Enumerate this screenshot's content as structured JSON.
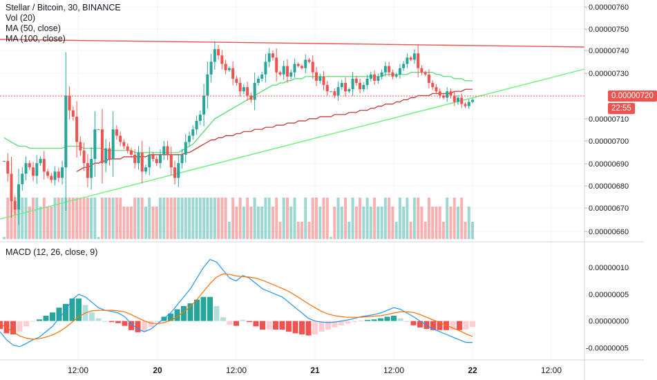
{
  "header": {
    "symbol_line": "Stellar / Bitcoin, 30, BINANCE",
    "indicators": [
      "Vol (20)",
      "MA (50, close)",
      "MA (100, close)"
    ]
  },
  "macd_pane": {
    "legend": "MACD (12, 26, close, 9)"
  },
  "price_axis": {
    "ticks": [
      "0.00000760",
      "0.00000750",
      "0.00000740",
      "0.00000730",
      "0.00000710",
      "0.00000700",
      "0.00000690",
      "0.00000680",
      "0.00000670",
      "0.00000660"
    ],
    "last_price": "0.00000720",
    "countdown": "22:55"
  },
  "macd_axis": {
    "ticks": [
      "0.00000010",
      "0.00000005",
      "0.00000000",
      "-0.00000005"
    ]
  },
  "time_axis": {
    "ticks": [
      "12:00",
      "20",
      "12:00",
      "21",
      "12:00",
      "22",
      "12:00"
    ]
  },
  "colors": {
    "up": "#26a69a",
    "down": "#ef5350",
    "ma50": "#4cd964",
    "ma100": "#c62828",
    "trend_resistance": "#ef5350",
    "trend_support": "#69f07a",
    "macd_line": "#2196f3",
    "signal_line": "#ff6d00",
    "grid": "#f0f3fa",
    "axis_text": "#131722"
  },
  "chart_data": [
    {
      "type": "candlestick",
      "title": "Stellar / Bitcoin, 30, BINANCE",
      "ylim": [
        6.56e-06,
        7.64e-06
      ],
      "x_ticks": [
        "12:00",
        "20",
        "12:00",
        "21",
        "12:00",
        "22",
        "12:00"
      ],
      "close": [
        6.91e-06,
        6.85e-06,
        6.72e-06,
        6.68e-06,
        6.8e-06,
        6.85e-06,
        6.9e-06,
        6.88e-06,
        6.84e-06,
        6.9e-06,
        6.92e-06,
        6.86e-06,
        6.84e-06,
        6.82e-06,
        6.86e-06,
        6.83e-06,
        6.88e-06,
        7.22e-06,
        7.15e-06,
        7.12e-06,
        7e-06,
        6.96e-06,
        6.9e-06,
        6.83e-06,
        6.92e-06,
        7.06e-06,
        7.06e-06,
        6.9e-06,
        6.97e-06,
        6.92e-06,
        7.06e-06,
        7.03e-06,
        7e-06,
        6.98e-06,
        6.96e-06,
        6.94e-06,
        6.9e-06,
        6.95e-06,
        6.86e-06,
        6.88e-06,
        6.94e-06,
        6.92e-06,
        6.9e-06,
        6.94e-06,
        6.98e-06,
        6.94e-06,
        6.88e-06,
        6.83e-06,
        6.9e-06,
        6.94e-06,
        7e-06,
        7.03e-06,
        7.06e-06,
        7.1e-06,
        7.13e-06,
        7.22e-06,
        7.32e-06,
        7.38e-06,
        7.44e-06,
        7.41e-06,
        7.37e-06,
        7.34e-06,
        7.35e-06,
        7.3e-06,
        7.28e-06,
        7.24e-06,
        7.26e-06,
        7.22e-06,
        7.2e-06,
        7.28e-06,
        7.3e-06,
        7.32e-06,
        7.38e-06,
        7.42e-06,
        7.4e-06,
        7.33e-06,
        7.32e-06,
        7.36e-06,
        7.31e-06,
        7.33e-06,
        7.37e-06,
        7.36e-06,
        7.35e-06,
        7.39e-06,
        7.38e-06,
        7.33e-06,
        7.29e-06,
        7.31e-06,
        7.27e-06,
        7.24e-06,
        7.24e-06,
        7.22e-06,
        7.26e-06,
        7.28e-06,
        7.24e-06,
        7.25e-06,
        7.3e-06,
        7.28e-06,
        7.25e-06,
        7.27e-06,
        7.3e-06,
        7.32e-06,
        7.29e-06,
        7.31e-06,
        7.33e-06,
        7.36e-06,
        7.33e-06,
        7.31e-06,
        7.32e-06,
        7.35e-06,
        7.37e-06,
        7.4e-06,
        7.39e-06,
        7.42e-06,
        7.35e-06,
        7.33e-06,
        7.32e-06,
        7.28e-06,
        7.26e-06,
        7.24e-06,
        7.22e-06,
        7.21e-06,
        7.24e-06,
        7.22e-06,
        7.19e-06,
        7.21e-06,
        7.18e-06,
        7.17e-06,
        7.19e-06,
        7.2e-06
      ],
      "series": [
        {
          "name": "MA (50, close)",
          "values": [
            7.02e-06,
            7.01e-06,
            7e-06,
            6.99e-06,
            6.98e-06,
            6.98e-06,
            6.98e-06,
            6.97e-06,
            6.97e-06,
            6.97e-06,
            6.97e-06,
            6.97e-06,
            6.97e-06,
            6.97e-06,
            6.97e-06,
            6.97e-06,
            6.97e-06,
            6.98e-06,
            6.98e-06,
            6.98e-06,
            6.98e-06,
            6.98e-06,
            6.97e-06,
            6.97e-06,
            6.97e-06,
            6.97e-06,
            6.97e-06,
            6.97e-06,
            6.96e-06,
            6.96e-06,
            6.96e-06,
            6.96e-06,
            6.96e-06,
            6.96e-06,
            6.96e-06,
            6.96e-06,
            6.95e-06,
            6.95e-06,
            6.95e-06,
            6.95e-06,
            6.95e-06,
            6.95e-06,
            6.95e-06,
            6.95e-06,
            6.95e-06,
            6.95e-06,
            6.95e-06,
            6.95e-06,
            6.95e-06,
            6.96e-06,
            6.97e-06,
            6.98e-06,
            6.99e-06,
            7.01e-06,
            7.03e-06,
            7.05e-06,
            7.07e-06,
            7.09e-06,
            7.11e-06,
            7.12e-06,
            7.13e-06,
            7.14e-06,
            7.15e-06,
            7.16e-06,
            7.17e-06,
            7.18e-06,
            7.19e-06,
            7.2e-06,
            7.21e-06,
            7.22e-06,
            7.23e-06,
            7.24e-06,
            7.25e-06,
            7.26e-06,
            7.27e-06,
            7.27e-06,
            7.28e-06,
            7.28e-06,
            7.29e-06,
            7.29e-06,
            7.3e-06,
            7.3e-06,
            7.3e-06,
            7.31e-06,
            7.31e-06,
            7.31e-06,
            7.31e-06,
            7.31e-06,
            7.31e-06,
            7.31e-06,
            7.31e-06,
            7.31e-06,
            7.31e-06,
            7.31e-06,
            7.31e-06,
            7.31e-06,
            7.31e-06,
            7.31e-06,
            7.31e-06,
            7.31e-06,
            7.31e-06,
            7.31e-06,
            7.31e-06,
            7.31e-06,
            7.31e-06,
            7.32e-06,
            7.32e-06,
            7.32e-06,
            7.32e-06,
            7.32e-06,
            7.32e-06,
            7.32e-06,
            7.33e-06,
            7.33e-06,
            7.33e-06,
            7.33e-06,
            7.33e-06,
            7.33e-06,
            7.33e-06,
            7.32e-06,
            7.32e-06,
            7.31e-06,
            7.31e-06,
            7.31e-06,
            7.3e-06,
            7.3e-06,
            7.3e-06,
            7.29e-06,
            7.29e-06,
            7.29e-06
          ]
        },
        {
          "name": "MA (100, close)",
          "values": [
            null,
            null,
            null,
            null,
            null,
            null,
            null,
            null,
            null,
            null,
            null,
            null,
            null,
            null,
            null,
            null,
            null,
            null,
            null,
            null,
            6.86e-06,
            6.87e-06,
            6.88e-06,
            6.88e-06,
            6.89e-06,
            6.9e-06,
            6.9e-06,
            6.91e-06,
            6.91e-06,
            6.92e-06,
            6.92e-06,
            6.92e-06,
            6.92e-06,
            6.93e-06,
            6.93e-06,
            6.93e-06,
            6.93e-06,
            6.93e-06,
            6.93e-06,
            6.93e-06,
            6.94e-06,
            6.94e-06,
            6.94e-06,
            6.94e-06,
            6.94e-06,
            6.94e-06,
            6.94e-06,
            6.94e-06,
            6.94e-06,
            6.94e-06,
            6.95e-06,
            6.95e-06,
            6.96e-06,
            6.97e-06,
            6.98e-06,
            6.99e-06,
            7e-06,
            7.01e-06,
            7.01e-06,
            7.02e-06,
            7.02e-06,
            7.03e-06,
            7.03e-06,
            7.03e-06,
            7.04e-06,
            7.04e-06,
            7.05e-06,
            7.05e-06,
            7.05e-06,
            7.06e-06,
            7.06e-06,
            7.06e-06,
            7.07e-06,
            7.07e-06,
            7.07e-06,
            7.08e-06,
            7.08e-06,
            7.08e-06,
            7.09e-06,
            7.09e-06,
            7.09e-06,
            7.1e-06,
            7.1e-06,
            7.1e-06,
            7.11e-06,
            7.11e-06,
            7.11e-06,
            7.12e-06,
            7.12e-06,
            7.12e-06,
            7.12e-06,
            7.13e-06,
            7.13e-06,
            7.13e-06,
            7.13e-06,
            7.14e-06,
            7.14e-06,
            7.14e-06,
            7.15e-06,
            7.15e-06,
            7.15e-06,
            7.16e-06,
            7.16e-06,
            7.17e-06,
            7.17e-06,
            7.18e-06,
            7.18e-06,
            7.18e-06,
            7.19e-06,
            7.19e-06,
            7.2e-06,
            7.2e-06,
            7.21e-06,
            7.21e-06,
            7.22e-06,
            7.22e-06,
            7.22e-06,
            7.22e-06,
            7.23e-06,
            7.23e-06,
            7.23e-06,
            7.23e-06,
            7.23e-06,
            7.23e-06,
            7.24e-06,
            7.24e-06,
            7.24e-06,
            7.25e-06,
            7.25e-06,
            7.25e-06
          ]
        }
      ]
    },
    {
      "type": "bar",
      "title": "MACD (12, 26, close, 9)",
      "ylim": [
        -6.5e-08,
        1.35e-07
      ],
      "series": [
        {
          "name": "MACD",
          "values": [
            -2e-08,
            -3.5e-08,
            -4.5e-08,
            -4.8e-08,
            -4.2e-08,
            -3.5e-08,
            -3e-08,
            -2e-08,
            -1e-08,
            5e-09,
            2e-08,
            4e-08,
            5e-08,
            4.5e-08,
            3.5e-08,
            2.5e-08,
            2e-08,
            1.8e-08,
            1.5e-08,
            8e-09,
            -5e-09,
            -1.5e-08,
            -2e-08,
            -1.5e-08,
            -5e-09,
            5e-09,
            1.5e-08,
            3e-08,
            4.5e-08,
            6e-08,
            8e-08,
            1e-07,
            1.15e-07,
            1.1e-07,
            9.5e-08,
            8e-08,
            7.5e-08,
            8.5e-08,
            8e-08,
            7e-08,
            6e-08,
            5.5e-08,
            5e-08,
            4.5e-08,
            3.5e-08,
            2.5e-08,
            1.5e-08,
            5e-09,
            0.0,
            -2e-09,
            -3e-09,
            -2e-09,
            0.0,
            2e-09,
            5e-09,
            8e-09,
            1e-08,
            1.2e-08,
            1.5e-08,
            2e-08,
            2.5e-08,
            2.2e-08,
            1.5e-08,
            8e-09,
            0.0,
            -8e-09,
            -1.5e-08,
            -2e-08,
            -2.5e-08,
            -3e-08,
            -3.5e-08,
            -4e-08,
            -4e-08
          ]
        },
        {
          "name": "Signal",
          "values": [
            -5e-09,
            -1.2e-08,
            -2e-08,
            -2.8e-08,
            -3.2e-08,
            -3.4e-08,
            -3.3e-08,
            -3e-08,
            -2.6e-08,
            -2e-08,
            -1.2e-08,
            -2e-09,
            8e-09,
            1.5e-08,
            1.9e-08,
            2e-08,
            2e-08,
            2e-08,
            1.9e-08,
            1.7e-08,
            1.2e-08,
            6e-09,
            0.0,
            -4e-09,
            -5e-09,
            -3e-09,
            1e-09,
            8e-09,
            1.7e-08,
            2.7e-08,
            4e-08,
            5.5e-08,
            7e-08,
            8.2e-08,
            8.8e-08,
            8.7e-08,
            8.4e-08,
            8.3e-08,
            8.2e-08,
            8e-08,
            7.6e-08,
            7.1e-08,
            6.6e-08,
            6.1e-08,
            5.5e-08,
            4.8e-08,
            4e-08,
            3.2e-08,
            2.5e-08,
            1.8e-08,
            1.3e-08,
            1e-08,
            8e-09,
            7e-09,
            7e-09,
            7e-09,
            8e-09,
            9e-09,
            1e-08,
            1.2e-08,
            1.5e-08,
            1.7e-08,
            1.7e-08,
            1.6e-08,
            1.2e-08,
            7e-09,
            2e-09,
            -3e-09,
            -8e-09,
            -1.3e-08,
            -1.8e-08,
            -2.4e-08,
            -2.9e-08
          ]
        }
      ]
    }
  ]
}
